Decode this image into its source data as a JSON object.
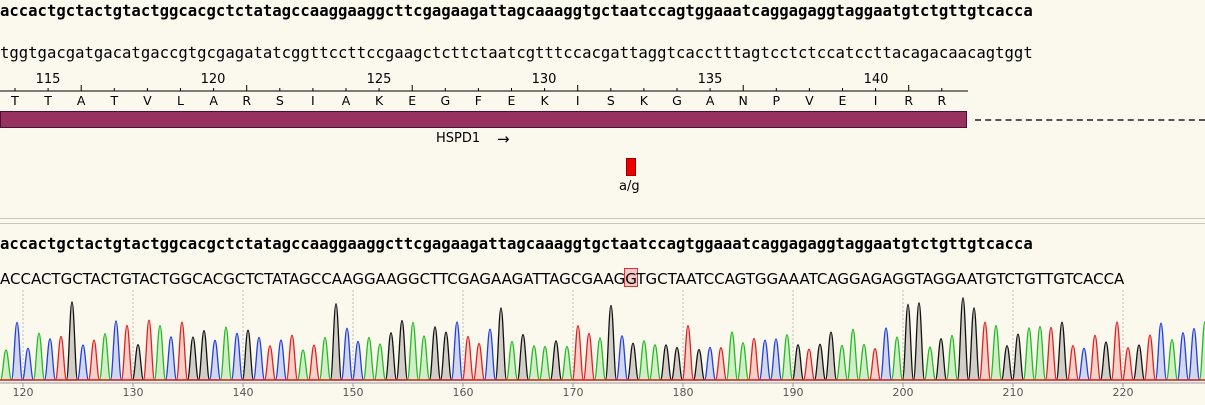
{
  "reference_sequence": "accactgctactgtactggcacgctctatagccaaggaaggcttcgagaagattagcaaaggtgctaatccagtggaaatcaggagaggtaggaatgtctgttgtcacca",
  "complement_sequence": "tggtgacgatgacatgaccgtgcgagatatcggttccttccgaagctcttctaatcgtttccacgattaggtcacctttagtcctctccatccttacagacaacagtggt",
  "top_ruler": {
    "labels": [
      "115",
      "120",
      "125",
      "130",
      "135",
      "140"
    ]
  },
  "amino_acids": [
    "T",
    "T",
    "A",
    "T",
    "V",
    "L",
    "A",
    "R",
    "S",
    "I",
    "A",
    "K",
    "E",
    "G",
    "F",
    "E",
    "K",
    "I",
    "S",
    "K",
    "G",
    "A",
    "N",
    "P",
    "V",
    "E",
    "I",
    "R",
    "R"
  ],
  "gene_feature": {
    "name": "HSPD1",
    "direction_arrow": "→",
    "color": "#97315f"
  },
  "variant": {
    "label": "a/g",
    "color": "#ee0000"
  },
  "read_sequence": "accactgctactgtactggcacgctctatagccaaggaaggcttcgagaagattagcaaaggtgctaatccagtggaaatcaggagaggtaggaatgtctgttgtcacca",
  "basecalls": {
    "before": "ACCACTGCTACTGTACTGGCACGCTCTATAGCCAAGGAAGGCTTCGAGAAGATTAGC",
    "highlighted": "G",
    "after": "AAGGTGCTAATCCAGTGGAAATCAGGAGAGGTAGGAATGTCTGTTGTCACCA"
  },
  "trace_axis": {
    "labels": [
      "120",
      "130",
      "140",
      "150",
      "160",
      "170",
      "180",
      "190",
      "200",
      "210",
      "220"
    ]
  },
  "base_colors": {
    "A": "#22bb22",
    "C": "#2040e0",
    "G": "#111111",
    "T": "#e02020"
  }
}
